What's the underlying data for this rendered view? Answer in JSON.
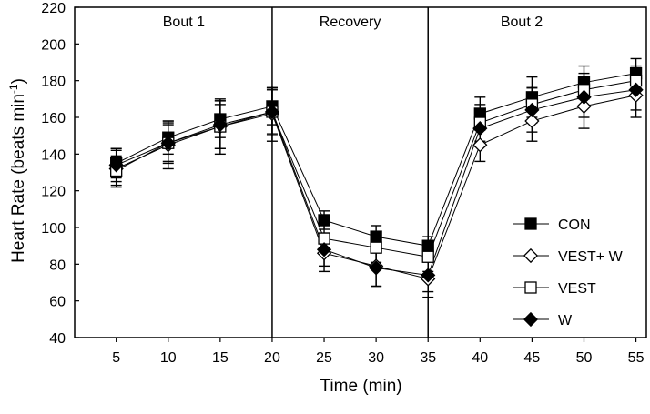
{
  "chart_data": {
    "type": "line",
    "x": [
      5,
      10,
      15,
      20,
      25,
      30,
      35,
      40,
      45,
      50,
      55
    ],
    "xlabel": "Time (min)",
    "ylabel": "Heart Rate (beats min",
    "ylabel_superscript": "-1",
    "ylabel_suffix": ")",
    "xticks": [
      "5",
      "10",
      "15",
      "20",
      "25",
      "30",
      "35",
      "40",
      "45",
      "50",
      "55"
    ],
    "yticks": [
      "40",
      "60",
      "80",
      "100",
      "120",
      "140",
      "160",
      "180",
      "200",
      "220"
    ],
    "xlim": [
      1,
      56
    ],
    "ylim": [
      40,
      220
    ],
    "sections": [
      {
        "label": "Bout 1",
        "center": 11.5
      },
      {
        "label": "Recovery",
        "center": 27.5
      },
      {
        "label": "Bout 2",
        "center": 44
      }
    ],
    "section_dividers": [
      20,
      35
    ],
    "legend_position": "bottom-right",
    "series": [
      {
        "name": "CON",
        "marker": "square",
        "filled": true,
        "values": [
          135,
          149,
          159,
          166,
          104,
          95,
          90,
          162,
          171,
          179,
          184
        ],
        "errors": [
          8,
          9,
          10,
          10,
          5,
          6,
          5,
          9,
          11,
          9,
          8
        ]
      },
      {
        "name": "VEST+ W",
        "marker": "diamond",
        "filled": false,
        "values": [
          132,
          145,
          155,
          162,
          86,
          79,
          72,
          145,
          158,
          166,
          172
        ],
        "errors": [
          10,
          13,
          15,
          15,
          10,
          11,
          10,
          9,
          11,
          12,
          12
        ]
      },
      {
        "name": "VEST",
        "marker": "square",
        "filled": false,
        "values": [
          131,
          146,
          155,
          163,
          94,
          89,
          84,
          157,
          167,
          175,
          180
        ],
        "errors": [
          8,
          10,
          12,
          12,
          7,
          8,
          8,
          10,
          10,
          9,
          8
        ]
      },
      {
        "name": "W",
        "marker": "diamond",
        "filled": true,
        "values": [
          134,
          146,
          156,
          163,
          88,
          78,
          74,
          154,
          164,
          171,
          175
        ],
        "errors": [
          9,
          11,
          13,
          13,
          9,
          10,
          9,
          10,
          12,
          11,
          11
        ]
      }
    ]
  }
}
